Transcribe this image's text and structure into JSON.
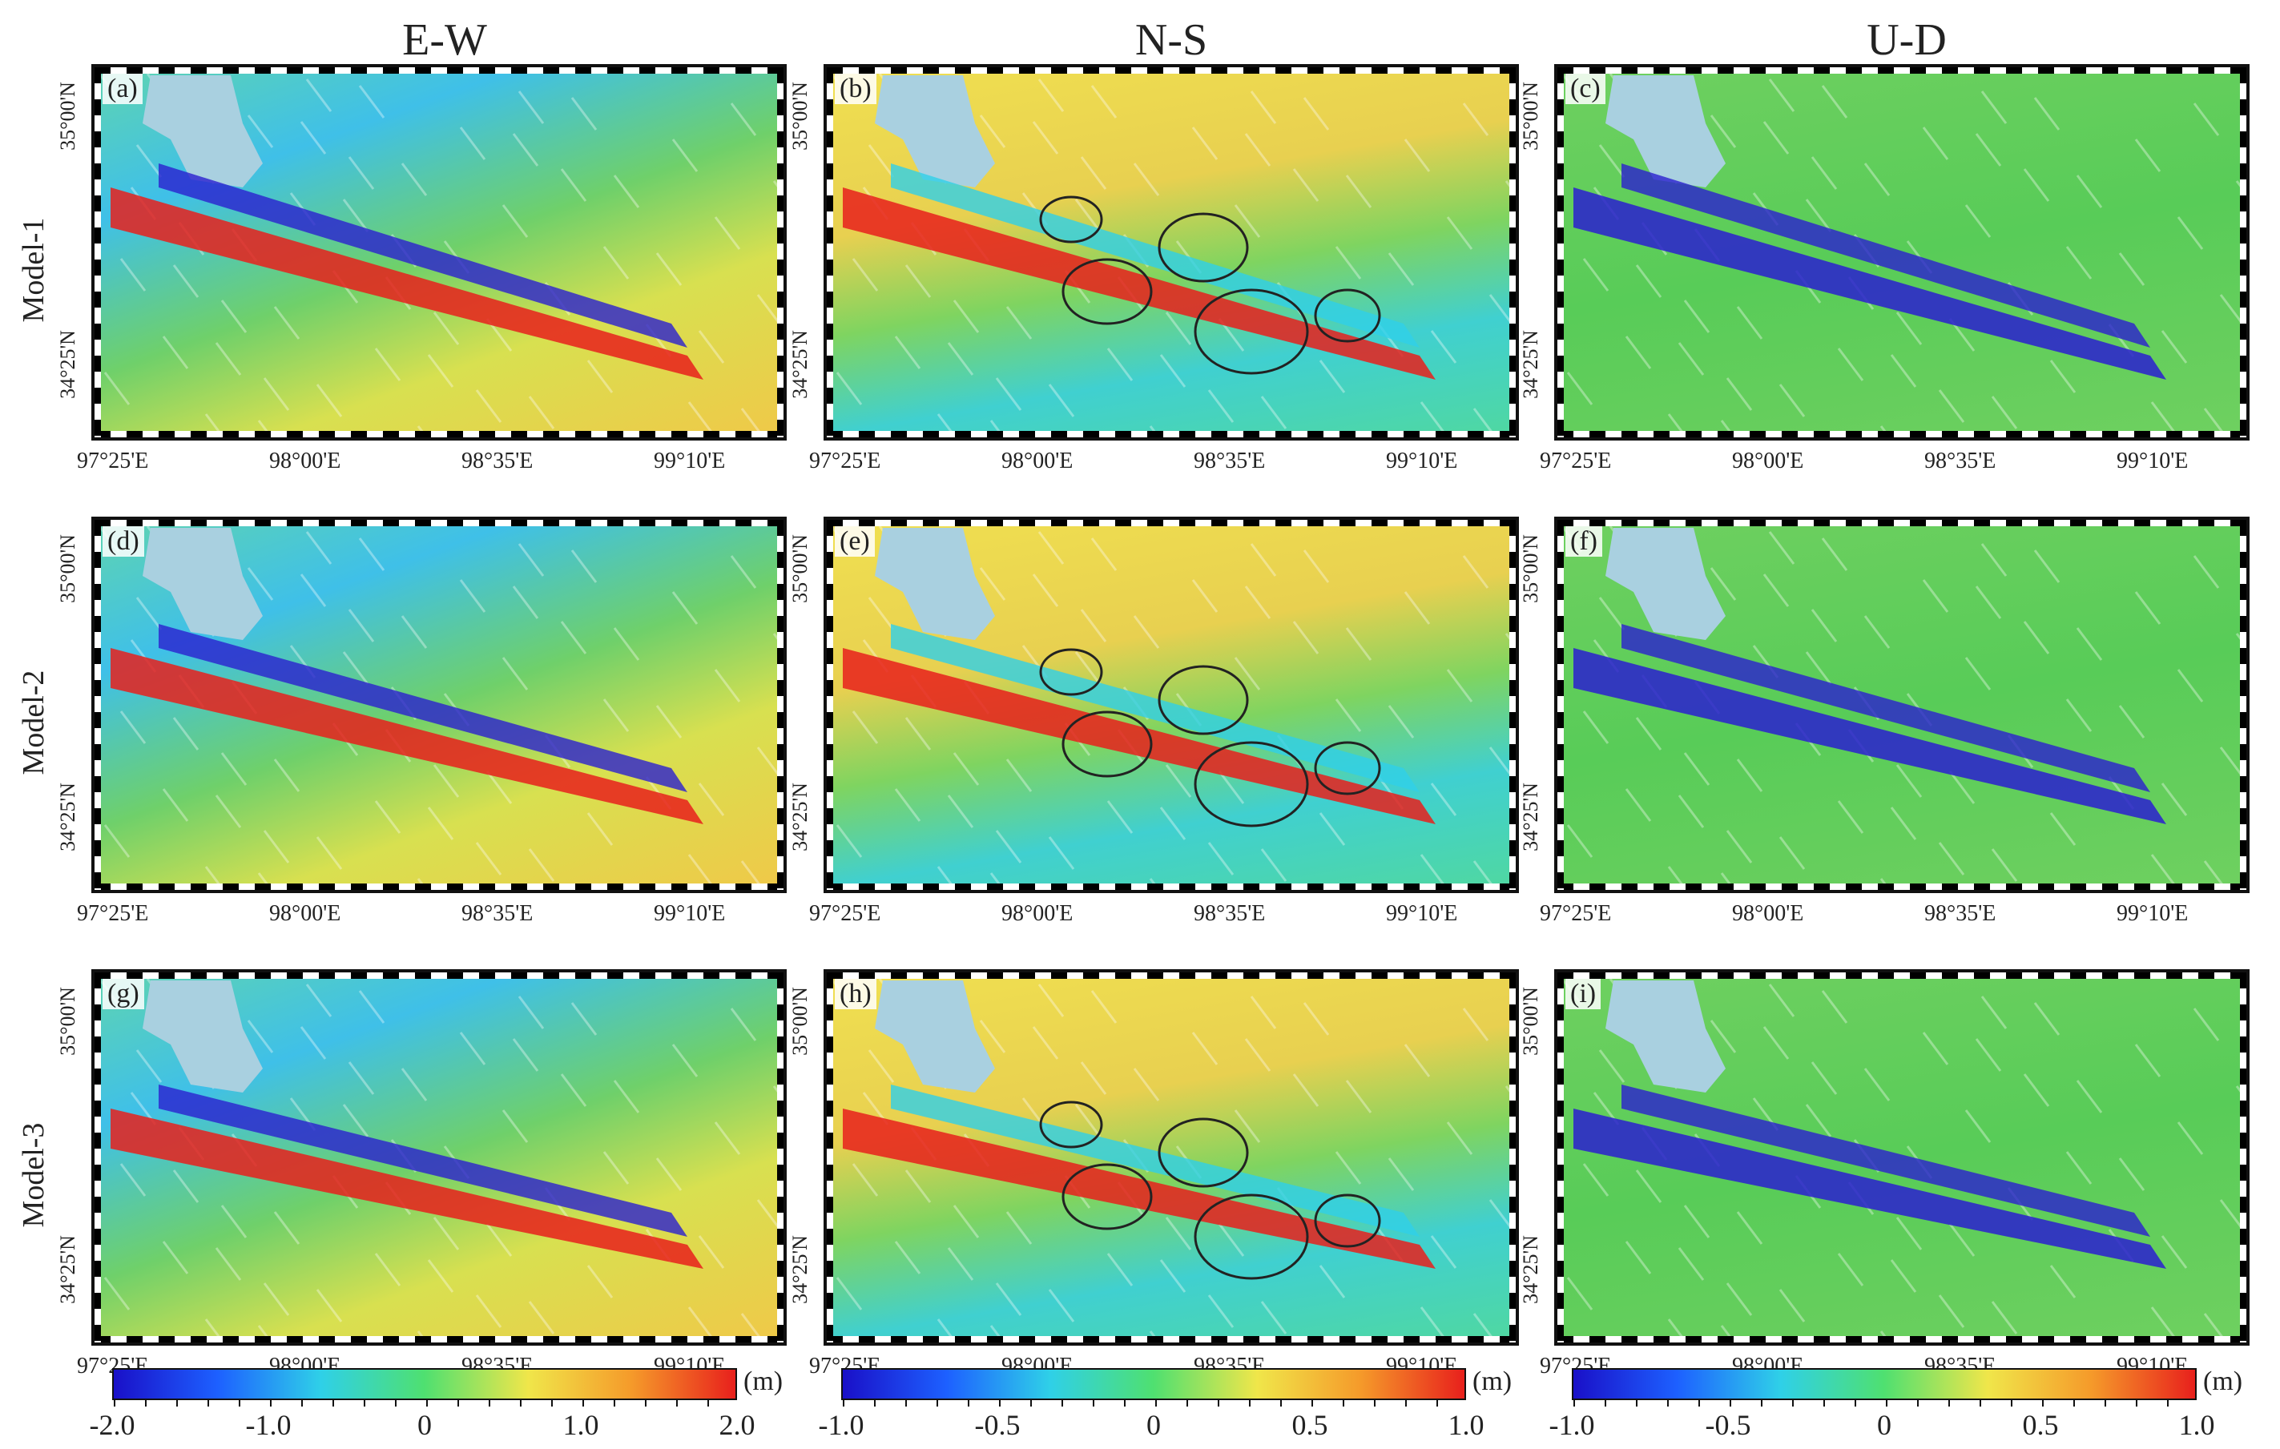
{
  "columns": [
    "E-W",
    "N-S",
    "U-D"
  ],
  "rows": [
    "Model-1",
    "Model-2",
    "Model-3"
  ],
  "panels": [
    "(a)",
    "(b)",
    "(c)",
    "(d)",
    "(e)",
    "(f)",
    "(g)",
    "(h)",
    "(i)"
  ],
  "lat_labels": [
    "35°00'N",
    "34°25'N"
  ],
  "lon_labels": [
    "97°25'E",
    "98°00'E",
    "98°35'E",
    "99°10'E"
  ],
  "colorbars": [
    {
      "unit": "(m)",
      "ticks": [
        "-2.0",
        "-1.0",
        "0",
        "1.0",
        "2.0"
      ]
    },
    {
      "unit": "(m)",
      "ticks": [
        "-1.0",
        "-0.5",
        "0",
        "0.5",
        "1.0"
      ]
    },
    {
      "unit": "(m)",
      "ticks": [
        "-1.0",
        "-0.5",
        "0",
        "0.5",
        "1.0"
      ]
    }
  ],
  "colors": {
    "lake": "#a9d0e0",
    "terrain": "#6fcf4a",
    "red": "#e8201c",
    "blue": "#2a1fd0",
    "cyan": "#2fd0e8",
    "yellow": "#f0e64a"
  }
}
